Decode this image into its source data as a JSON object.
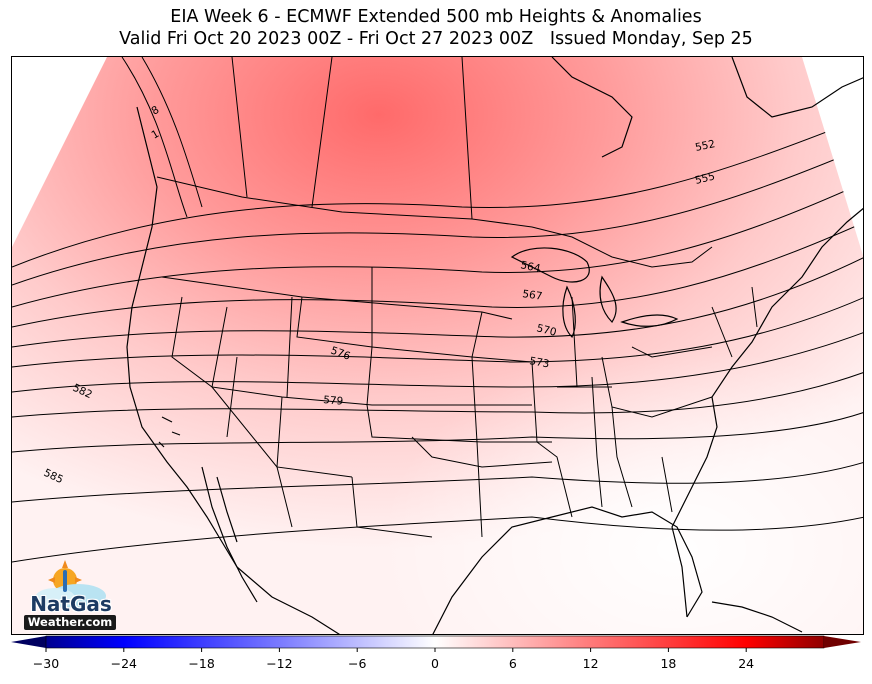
{
  "title": {
    "line1": "EIA Week 6 - ECMWF Extended 500 mb Heights & Anomalies",
    "line2": "Valid Fri Oct 20 2023 00Z - Fri Oct 27 2023 00Z   Issued Monday, Sep 25"
  },
  "map": {
    "region": "North America / CONUS",
    "contour_labels": [
      "552",
      "555",
      "564",
      "567",
      "570",
      "573",
      "576",
      "579",
      "582",
      "585",
      "8",
      "1"
    ],
    "anomaly_pattern": "positive anomalies (red) over northern US and Canada, near-neutral over Southeast"
  },
  "colorbar": {
    "ticks": [
      "−30",
      "−24",
      "−18",
      "−12",
      "−6",
      "0",
      "6",
      "12",
      "18",
      "24"
    ],
    "min": -30,
    "max": 30,
    "colors": {
      "min": "#000080",
      "neg": "#3a3aff",
      "zero": "#ffffff",
      "pos": "#ff3a3a",
      "max": "#800000"
    }
  },
  "logo": {
    "main": "NatGas",
    "sub": "Weather.com"
  }
}
